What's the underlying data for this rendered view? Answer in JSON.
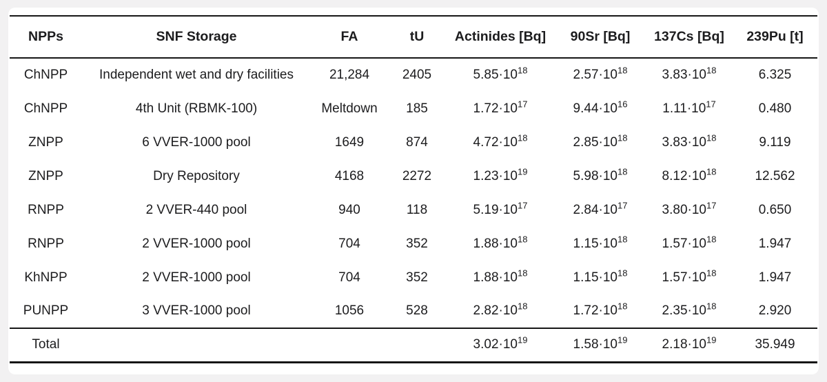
{
  "table": {
    "columns": [
      "NPPs",
      "SNF Storage",
      "FA",
      "tU",
      "Actinides [Bq]",
      "90Sr [Bq]",
      "137Cs [Bq]",
      "239Pu [t]"
    ],
    "rows": [
      [
        "ChNPP",
        "Independent wet and dry facilities",
        "21,284",
        "2405",
        "5.85·10^18",
        "2.57·10^18",
        "3.83·10^18",
        "6.325"
      ],
      [
        "ChNPP",
        "4th Unit (RBMK-100)",
        "Meltdown",
        "185",
        "1.72·10^17",
        "9.44·10^16",
        "1.11·10^17",
        "0.480"
      ],
      [
        "ZNPP",
        "6 VVER-1000 pool",
        "1649",
        "874",
        "4.72·10^18",
        "2.85·10^18",
        "3.83·10^18",
        "9.119"
      ],
      [
        "ZNPP",
        "Dry Repository",
        "4168",
        "2272",
        "1.23·10^19",
        "5.98·10^18",
        "8.12·10^18",
        "12.562"
      ],
      [
        "RNPP",
        "2 VVER-440 pool",
        "940",
        "118",
        "5.19·10^17",
        "2.84·10^17",
        "3.80·10^17",
        "0.650"
      ],
      [
        "RNPP",
        "2 VVER-1000 pool",
        "704",
        "352",
        "1.88·10^18",
        "1.15·10^18",
        "1.57·10^18",
        "1.947"
      ],
      [
        "KhNPP",
        "2 VVER-1000 pool",
        "704",
        "352",
        "1.88·10^18",
        "1.15·10^18",
        "1.57·10^18",
        "1.947"
      ],
      [
        "PUNPP",
        "3 VVER-1000 pool",
        "1056",
        "528",
        "2.82·10^18",
        "1.72·10^18",
        "2.35·10^18",
        "2.920"
      ]
    ],
    "total_row": [
      "Total",
      "",
      "",
      "",
      "3.02·10^19",
      "1.58·10^19",
      "2.18·10^19",
      "35.949"
    ]
  },
  "colors": {
    "page_background": "#f2f1f2",
    "panel_background": "#ffffff",
    "text": "#1c1c1e",
    "rule": "#161616"
  }
}
